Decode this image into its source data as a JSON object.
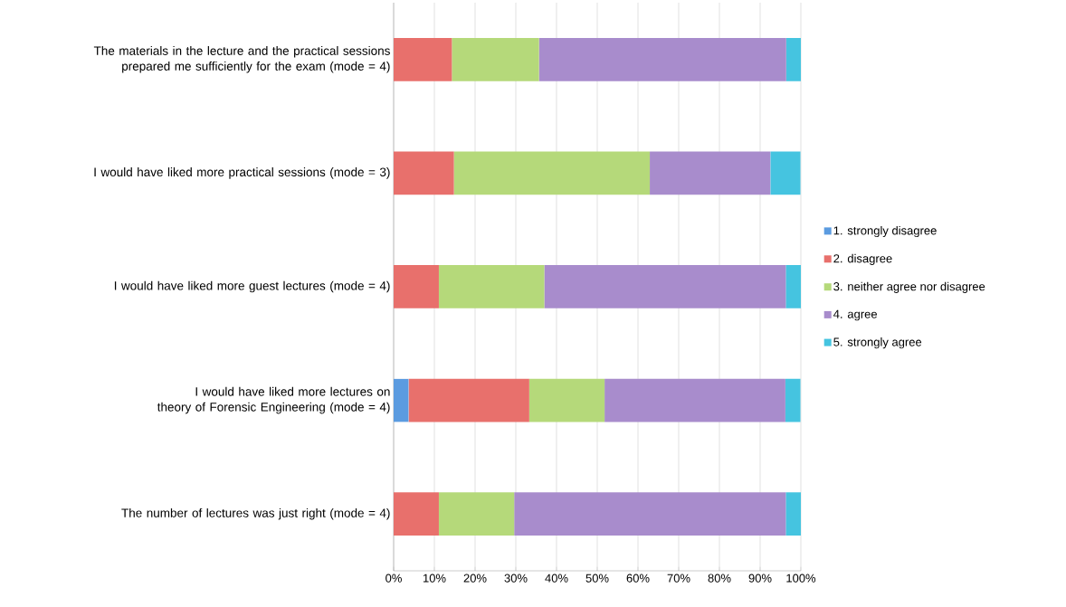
{
  "chart_data": {
    "type": "bar",
    "orientation": "horizontal",
    "stacked": true,
    "categories": [
      "The materials in the lecture and the practical sessions prepared me sufficiently for the exam (mode = 4)",
      "I would have liked more practical sessions (mode = 3)",
      "I would have liked more guest lectures (mode = 4)",
      "I would have liked more lectures on theory of Forensic Engineering (mode = 4)",
      "The number of lectures was just right (mode = 4)"
    ],
    "series": [
      {
        "name": "1. strongly disagree",
        "color": "#5b9be0",
        "values": [
          0,
          0,
          0,
          3.7,
          0
        ]
      },
      {
        "name": "2. disagree",
        "color": "#e8706c",
        "values": [
          14.3,
          14.8,
          11.1,
          29.6,
          11.1
        ]
      },
      {
        "name": "3. neither agree nor disagree",
        "color": "#b5d97a",
        "values": [
          21.4,
          48.1,
          25.9,
          18.5,
          18.5
        ]
      },
      {
        "name": "4. agree",
        "color": "#a88ccc",
        "values": [
          60.7,
          29.6,
          59.3,
          44.4,
          66.7
        ]
      },
      {
        "name": "5. strongly agree",
        "color": "#45c4e0",
        "values": [
          3.6,
          7.4,
          3.7,
          3.7,
          3.7
        ]
      }
    ],
    "xlim": [
      0,
      100
    ],
    "xticks": [
      {
        "value": 0,
        "label": "0%"
      },
      {
        "value": 10,
        "label": "10%"
      },
      {
        "value": 20,
        "label": "20%"
      },
      {
        "value": 30,
        "label": "30%"
      },
      {
        "value": 40,
        "label": "40%"
      },
      {
        "value": 50,
        "label": "50%"
      },
      {
        "value": 60,
        "label": "60%"
      },
      {
        "value": 70,
        "label": "70%"
      },
      {
        "value": 80,
        "label": "80%"
      },
      {
        "value": 90,
        "label": "90%"
      },
      {
        "value": 100,
        "label": "100%"
      }
    ],
    "grid": "x",
    "legend": "right"
  }
}
